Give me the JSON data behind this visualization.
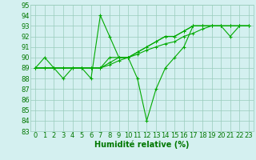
{
  "bg_color": "#d4f0f0",
  "grid_color": "#99ccbb",
  "line_color": "#00aa00",
  "xlabel": "Humidité relative (%)",
  "xlabel_color": "#007700",
  "xlabel_fontsize": 7,
  "tick_fontsize": 6,
  "ylim": [
    83,
    95
  ],
  "xlim": [
    -0.5,
    23.5
  ],
  "yticks": [
    83,
    84,
    85,
    86,
    87,
    88,
    89,
    90,
    91,
    92,
    93,
    94,
    95
  ],
  "xticks": [
    0,
    1,
    2,
    3,
    4,
    5,
    6,
    7,
    8,
    9,
    10,
    11,
    12,
    13,
    14,
    15,
    16,
    17,
    18,
    19,
    20,
    21,
    22,
    23
  ],
  "series_jagged": [
    89,
    90,
    89,
    88,
    89,
    89,
    88,
    94,
    92,
    90,
    90,
    88,
    84,
    87,
    89,
    90,
    91,
    93,
    93,
    93,
    93,
    92,
    93,
    93
  ],
  "series_smooth": [
    [
      89,
      89,
      89,
      89,
      89,
      89,
      89,
      89,
      89.3,
      89.7,
      90.0,
      90.3,
      90.7,
      91.0,
      91.3,
      91.5,
      92.0,
      92.3,
      92.7,
      93.0,
      93.0,
      93.0,
      93.0,
      93.0
    ],
    [
      89,
      89,
      89,
      89,
      89,
      89,
      89,
      89,
      89.5,
      90.0,
      90.0,
      90.5,
      91.0,
      91.5,
      92.0,
      92.0,
      92.5,
      93.0,
      93.0,
      93.0,
      93.0,
      93.0,
      93.0,
      93.0
    ],
    [
      89,
      89,
      89,
      89,
      89,
      89,
      89,
      89,
      90.0,
      90.0,
      90.0,
      90.5,
      91.0,
      91.5,
      92.0,
      92.0,
      92.5,
      93.0,
      93.0,
      93.0,
      93.0,
      93.0,
      93.0,
      93.0
    ]
  ]
}
